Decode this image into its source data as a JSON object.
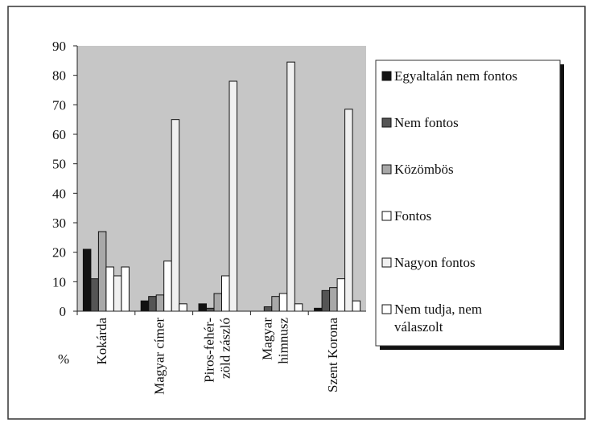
{
  "chart_data": {
    "type": "bar",
    "y_label": "%",
    "categories": [
      "Kokárda",
      "Magyar címer",
      "Piros-fehér-\nzöld zászló",
      "Magyar\nhimnusz",
      "Szent Korona"
    ],
    "series": [
      {
        "name": "Egyaltalán nem fontos",
        "color": "#111111",
        "values": [
          21,
          3.5,
          2.5,
          0,
          1
        ]
      },
      {
        "name": "Nem fontos",
        "color": "#555555",
        "values": [
          11,
          5,
          1,
          1.5,
          7
        ]
      },
      {
        "name": "Közömbös",
        "color": "#a8a8a8",
        "values": [
          27,
          5.5,
          6,
          5,
          8
        ]
      },
      {
        "name": "Fontos",
        "color": "#ffffff",
        "values": [
          15,
          17,
          12,
          6,
          11
        ]
      },
      {
        "name": "Nagyon fontos",
        "color": "#f0f0f0",
        "values": [
          12,
          65,
          78,
          84.5,
          68.5
        ]
      },
      {
        "name": "Nem tudja, nem\nválaszolt",
        "color": "#ffffff",
        "values": [
          15,
          2.5,
          0,
          2.5,
          3.5
        ]
      }
    ],
    "ylim": [
      0,
      90
    ],
    "yticks": [
      0,
      10,
      20,
      30,
      40,
      50,
      60,
      70,
      80,
      90
    ],
    "grid": false
  }
}
